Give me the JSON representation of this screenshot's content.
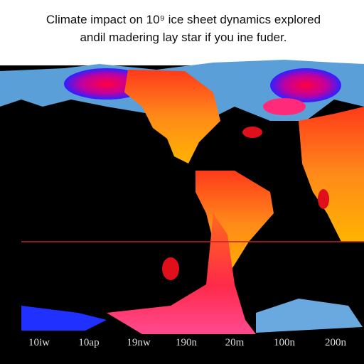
{
  "title": {
    "lines": [
      "Climate impact on 10⁹ ice sheet dynamics explored",
      "andil madering lay star if you ine fuder."
    ]
  },
  "axis": {
    "labels": [
      "10іw",
      "10ap",
      "19nw",
      "190n",
      "20m",
      "100n",
      "200n"
    ]
  }
}
